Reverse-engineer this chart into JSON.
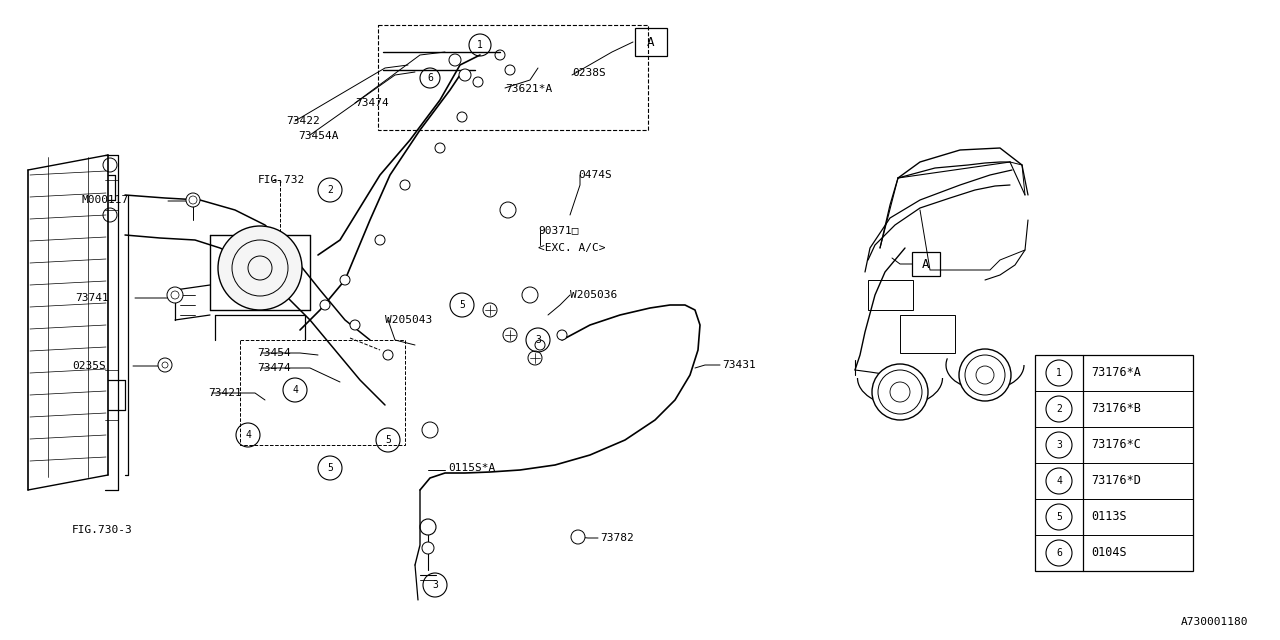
{
  "bg_color": "#ffffff",
  "line_color": "#000000",
  "part_number": "A730001180",
  "legend_items": [
    {
      "num": "1",
      "code": "73176*A"
    },
    {
      "num": "2",
      "code": "73176*B"
    },
    {
      "num": "3",
      "code": "73176*C"
    },
    {
      "num": "4",
      "code": "73176*D"
    },
    {
      "num": "5",
      "code": "0113S"
    },
    {
      "num": "6",
      "code": "0104S"
    }
  ]
}
